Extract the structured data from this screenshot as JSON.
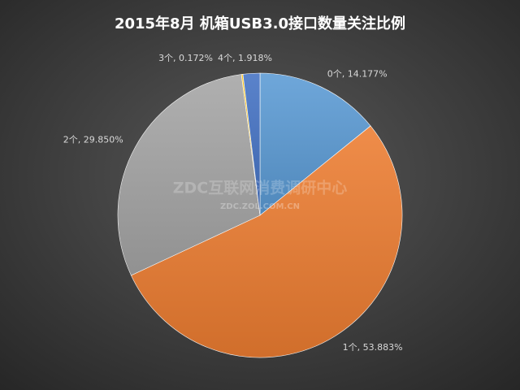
{
  "chart_data": {
    "type": "pie",
    "title": "2015年8月  机箱USB3.0接口数量关注比例",
    "watermark": "ZDC互联网消费调研中心",
    "watermark_url": "ZDC.ZOL.COM.CN",
    "values": [
      14.177,
      53.883,
      29.85,
      0.172,
      1.918
    ],
    "value_labels": [
      "0个, 14.177%",
      "1个, 53.883%",
      "2个, 29.850%",
      "3个, 0.172%",
      "4个, 1.918%"
    ],
    "colors": [
      "#5b9bd5",
      "#ed7d31",
      "#a5a5a5",
      "#ffc000",
      "#4472c4"
    ]
  }
}
